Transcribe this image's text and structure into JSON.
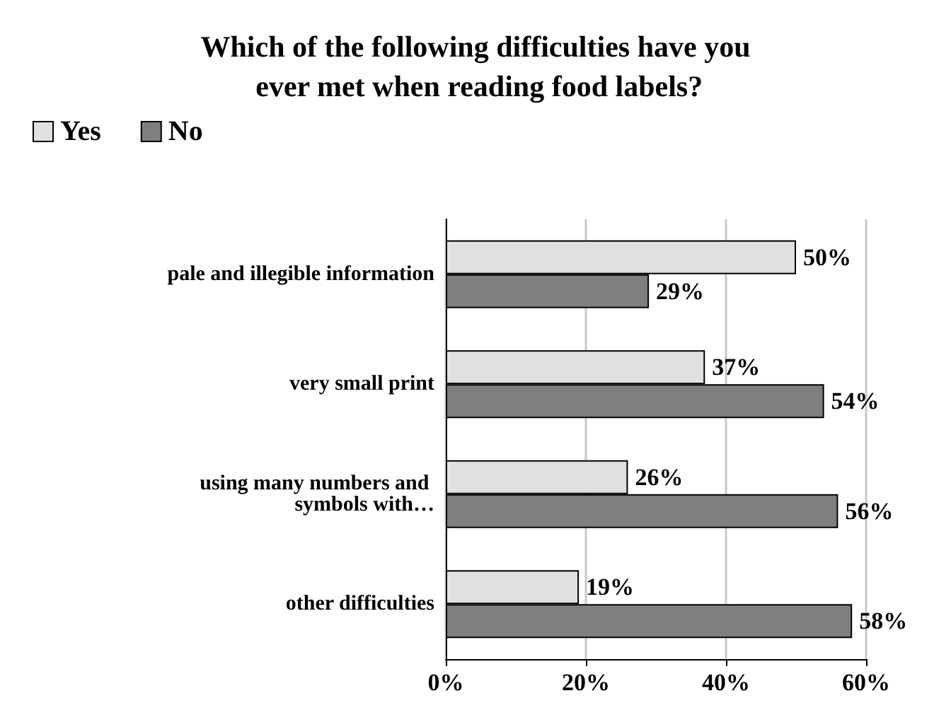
{
  "chart_data": {
    "type": "bar",
    "orientation": "horizontal",
    "title": "Which of the following difficulties have you ever met when reading food labels?",
    "categories": [
      "pale and illegible information",
      "very small print",
      "using many numbers and symbols with…",
      "other difficulties"
    ],
    "series": [
      {
        "name": "Yes",
        "color": "#e0e0e0",
        "values": [
          50,
          37,
          26,
          19
        ],
        "value_labels": [
          "50%",
          "37%",
          "26%",
          "19%"
        ]
      },
      {
        "name": "No",
        "color": "#7f7f7f",
        "values": [
          29,
          54,
          56,
          58
        ],
        "value_labels": [
          "29%",
          "54%",
          "56%",
          "58%"
        ]
      }
    ],
    "xlim": [
      0,
      60
    ],
    "xticks": [
      {
        "value": 0,
        "label": "0%"
      },
      {
        "value": 20,
        "label": "20%"
      },
      {
        "value": 40,
        "label": "40%"
      },
      {
        "value": 60,
        "label": "60%"
      }
    ],
    "grid": "x",
    "legend": "top left"
  }
}
